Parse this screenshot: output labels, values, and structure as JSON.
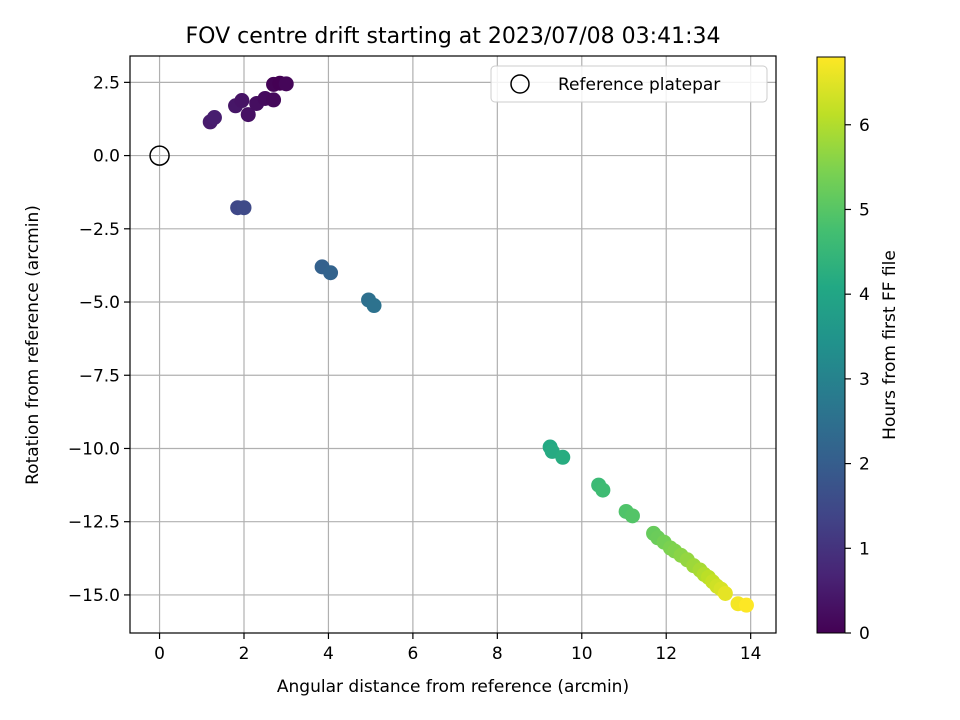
{
  "chart_data": {
    "type": "scatter",
    "title": "FOV centre drift starting at 2023/07/08 03:41:34",
    "xlabel": "Angular distance from reference (arcmin)",
    "ylabel": "Rotation from reference (arcmin)",
    "xlim": [
      -0.7,
      14.6
    ],
    "ylim": [
      -16.3,
      3.4
    ],
    "xticks": [
      0,
      2,
      4,
      6,
      8,
      10,
      12,
      14
    ],
    "yticks": [
      2.5,
      0.0,
      -2.5,
      -5.0,
      -7.5,
      -10.0,
      -12.5,
      -15.0
    ],
    "xtick_labels": [
      "0",
      "2",
      "4",
      "6",
      "8",
      "10",
      "12",
      "14"
    ],
    "ytick_labels": [
      "2.5",
      "0.0",
      "−2.5",
      "−5.0",
      "−7.5",
      "−10.0",
      "−12.5",
      "−15.0"
    ],
    "grid": true,
    "colormap": "viridis",
    "colorbar": {
      "label": "Hours from first FF file",
      "range": [
        0,
        6.8
      ],
      "ticks": [
        0,
        1,
        2,
        3,
        4,
        5,
        6
      ],
      "tick_labels": [
        "0",
        "1",
        "2",
        "3",
        "4",
        "5",
        "6"
      ]
    },
    "legend": {
      "position": "top-right",
      "entries": [
        "Reference platepar"
      ]
    },
    "reference_point": {
      "x": 0,
      "y": 0
    },
    "points": [
      {
        "x": 1.2,
        "y": 1.15,
        "c": 0.5
      },
      {
        "x": 1.3,
        "y": 1.3,
        "c": 0.55
      },
      {
        "x": 1.8,
        "y": 1.7,
        "c": 0.4
      },
      {
        "x": 1.95,
        "y": 1.88,
        "c": 0.35
      },
      {
        "x": 2.1,
        "y": 1.4,
        "c": 0.3
      },
      {
        "x": 2.3,
        "y": 1.78,
        "c": 0.25
      },
      {
        "x": 2.5,
        "y": 1.95,
        "c": 0.2
      },
      {
        "x": 2.7,
        "y": 1.9,
        "c": 0.15
      },
      {
        "x": 2.7,
        "y": 2.43,
        "c": 0.05
      },
      {
        "x": 2.85,
        "y": 2.47,
        "c": 0.0
      },
      {
        "x": 3.0,
        "y": 2.45,
        "c": 0.1
      },
      {
        "x": 1.85,
        "y": -1.78,
        "c": 1.45
      },
      {
        "x": 2.0,
        "y": -1.78,
        "c": 1.5
      },
      {
        "x": 3.85,
        "y": -3.8,
        "c": 2.1
      },
      {
        "x": 4.05,
        "y": -4.0,
        "c": 2.15
      },
      {
        "x": 4.95,
        "y": -4.93,
        "c": 2.5
      },
      {
        "x": 5.08,
        "y": -5.12,
        "c": 2.55
      },
      {
        "x": 9.25,
        "y": -9.95,
        "c": 4.1
      },
      {
        "x": 9.3,
        "y": -10.1,
        "c": 4.15
      },
      {
        "x": 9.55,
        "y": -10.3,
        "c": 4.2
      },
      {
        "x": 10.4,
        "y": -11.25,
        "c": 4.6
      },
      {
        "x": 10.5,
        "y": -11.42,
        "c": 4.65
      },
      {
        "x": 11.05,
        "y": -12.15,
        "c": 4.9
      },
      {
        "x": 11.2,
        "y": -12.3,
        "c": 4.95
      },
      {
        "x": 11.7,
        "y": -12.9,
        "c": 5.2
      },
      {
        "x": 11.8,
        "y": -13.05,
        "c": 5.25
      },
      {
        "x": 11.95,
        "y": -13.2,
        "c": 5.35
      },
      {
        "x": 12.1,
        "y": -13.4,
        "c": 5.45
      },
      {
        "x": 12.2,
        "y": -13.5,
        "c": 5.5
      },
      {
        "x": 12.35,
        "y": -13.65,
        "c": 5.6
      },
      {
        "x": 12.5,
        "y": -13.8,
        "c": 5.7
      },
      {
        "x": 12.65,
        "y": -14.0,
        "c": 5.8
      },
      {
        "x": 12.8,
        "y": -14.15,
        "c": 5.9
      },
      {
        "x": 12.9,
        "y": -14.3,
        "c": 6.0
      },
      {
        "x": 13.0,
        "y": -14.4,
        "c": 6.1
      },
      {
        "x": 13.1,
        "y": -14.55,
        "c": 6.2
      },
      {
        "x": 13.2,
        "y": -14.7,
        "c": 6.3
      },
      {
        "x": 13.3,
        "y": -14.8,
        "c": 6.4
      },
      {
        "x": 13.4,
        "y": -14.95,
        "c": 6.55
      },
      {
        "x": 13.7,
        "y": -15.3,
        "c": 6.7
      },
      {
        "x": 13.9,
        "y": -15.35,
        "c": 6.8
      }
    ]
  }
}
